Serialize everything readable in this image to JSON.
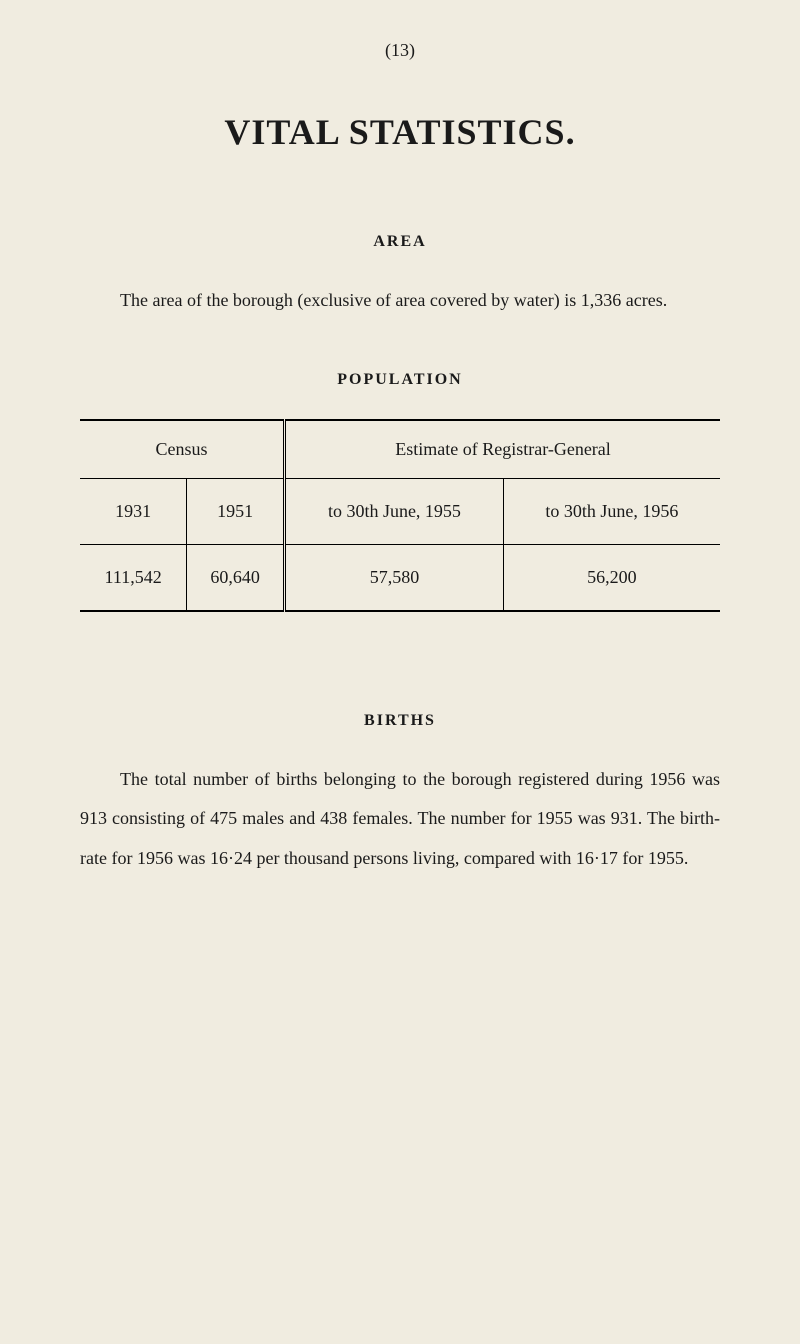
{
  "page_number": "(13)",
  "main_title": "VITAL STATISTICS.",
  "area": {
    "header": "AREA",
    "text": "The area of the borough (exclusive of area covered by water) is 1,336 acres."
  },
  "population": {
    "header": "POPULATION",
    "table": {
      "columns": {
        "census_header": "Census",
        "estimate_header": "Estimate of Registrar-General",
        "sub_headers": [
          "1931",
          "1951",
          "to 30th June, 1955",
          "to 30th June, 1956"
        ]
      },
      "rows": [
        [
          "111,542",
          "60,640",
          "57,580",
          "56,200"
        ]
      ],
      "col_widths": [
        "25%",
        "25%",
        "25%",
        "25%"
      ]
    }
  },
  "births": {
    "header": "BIRTHS",
    "text": "The total number of births belonging to the borough registered during 1956 was 913 consisting of 475 males and 438 females. The number for 1955 was 931. The birth-rate for 1956 was 16·24 per thousand persons living, compared with 16·17 for 1955."
  },
  "colors": {
    "background": "#f0ece0",
    "text": "#1a1a1a",
    "rule": "#000000"
  },
  "typography": {
    "body_font": "Times New Roman",
    "page_number_size": 18,
    "title_size": 36,
    "section_header_size": 16,
    "body_size": 18
  }
}
